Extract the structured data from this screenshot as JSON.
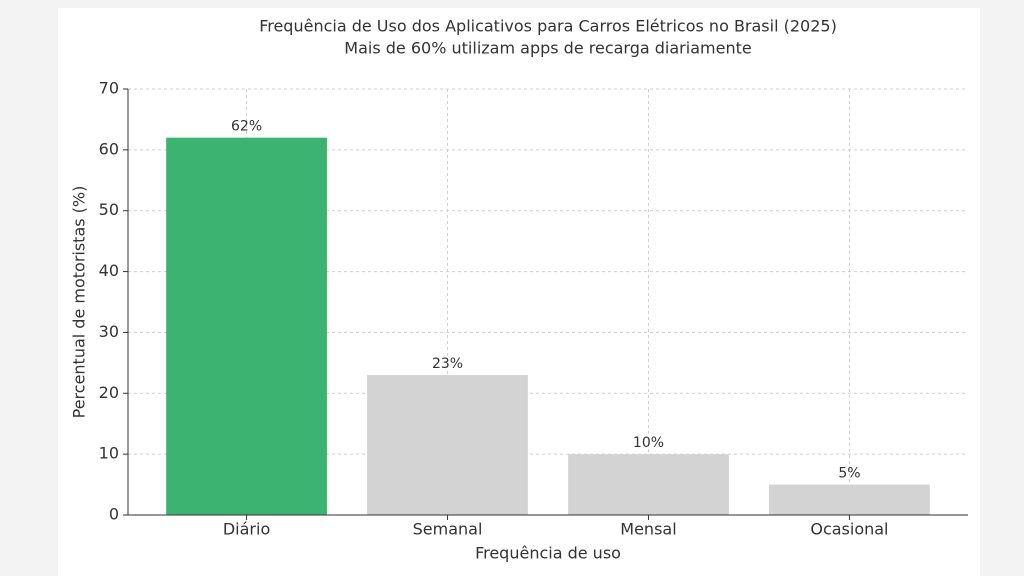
{
  "chart_data": {
    "type": "bar",
    "title": "Frequência de Uso dos Aplicativos para Carros Elétricos no Brasil (2025)",
    "subtitle": "Mais de 60% utilizam apps de recarga diariamente",
    "x_label": "Frequência de uso",
    "y_label": "Percentual de motoristas (%)",
    "categories": [
      "Diário",
      "Semanal",
      "Mensal",
      "Ocasional"
    ],
    "values": [
      62,
      23,
      10,
      5
    ],
    "value_labels": [
      "62%",
      "23%",
      "10%",
      "5%"
    ],
    "colors": [
      "#3cb371",
      "#d3d3d3",
      "#d3d3d3",
      "#d3d3d3"
    ],
    "ylim": [
      0,
      70
    ],
    "yticks": [
      0,
      10,
      20,
      30,
      40,
      50,
      60,
      70
    ],
    "grid": true
  }
}
